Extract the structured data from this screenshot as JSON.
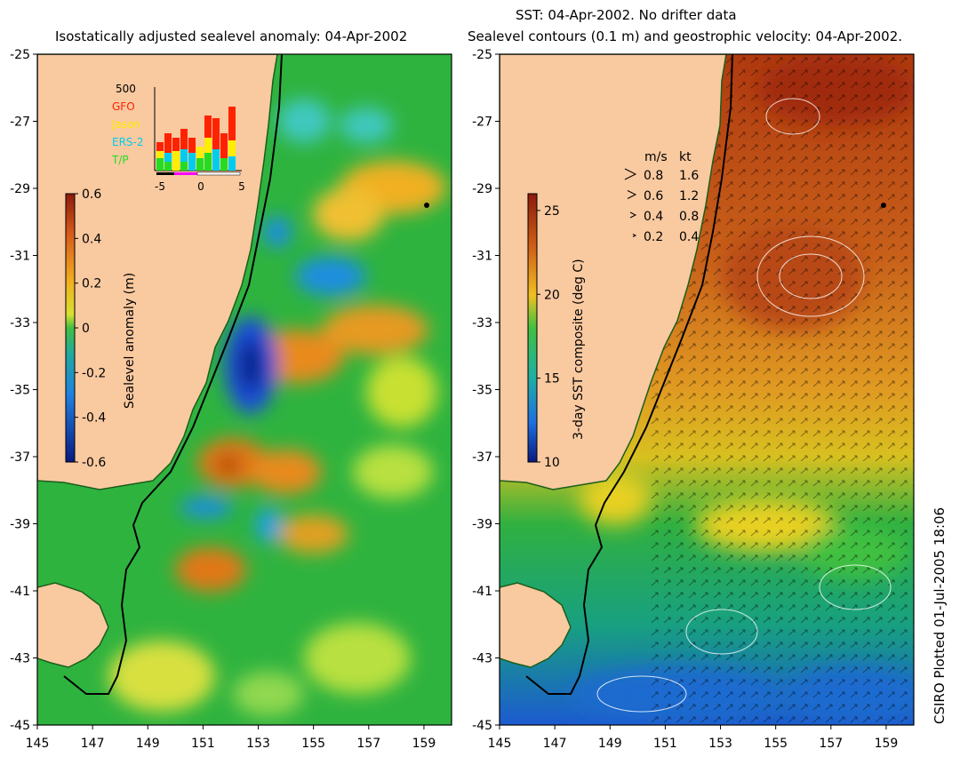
{
  "titles": {
    "left": "Isostatically adjusted sealevel anomaly: 04-Apr-2002",
    "right_line1": "SST: 04-Apr-2002. No drifter data",
    "right_line2": "Sealevel contours (0.1 m) and geostrophic velocity: 04-Apr-2002."
  },
  "credit": "CSIRO Plotted 01-Jul-2005 18:06",
  "axes": {
    "lat_ticks": [
      "-25",
      "-27",
      "-29",
      "-31",
      "-33",
      "-35",
      "-37",
      "-39",
      "-41",
      "-43",
      "-45"
    ],
    "lon_ticks": [
      "145",
      "147",
      "149",
      "151",
      "153",
      "155",
      "157",
      "159"
    ],
    "lat_range": [
      -45,
      -25
    ],
    "lon_range": [
      145,
      160
    ]
  },
  "left_colorbar": {
    "label": "Sealevel anomaly (m)",
    "ticks": [
      "0.6",
      "0.4",
      "0.2",
      "0",
      "-0.2",
      "-0.4",
      "-0.6"
    ],
    "range": [
      -0.6,
      0.6
    ]
  },
  "right_colorbar": {
    "label": "3-day SST composite (deg C)",
    "ticks": [
      "25",
      "20",
      "15",
      "10"
    ],
    "range": [
      10,
      26
    ]
  },
  "inset": {
    "top_label": "500",
    "legend": [
      {
        "name": "GFO",
        "color": "#ff2200"
      },
      {
        "name": "Jason",
        "color": "#ffee00"
      },
      {
        "name": "ERS-2",
        "color": "#00ccee"
      },
      {
        "name": "T/P",
        "color": "#22dd22"
      }
    ],
    "x_ticks": [
      "-5",
      "0",
      "5"
    ]
  },
  "velocity_key": {
    "header_ms": "m/s",
    "header_kt": "kt",
    "rows": [
      {
        "ms": "0.8",
        "kt": "1.6"
      },
      {
        "ms": "0.6",
        "kt": "1.2"
      },
      {
        "ms": "0.4",
        "kt": "0.8"
      },
      {
        "ms": "0.2",
        "kt": "0.4"
      }
    ]
  },
  "colors": {
    "land": "#f9c9a0",
    "ocean_left": "#29b23a",
    "ocean_right_south": "#1fae4c",
    "ocean_right_north": "#b84a10"
  }
}
